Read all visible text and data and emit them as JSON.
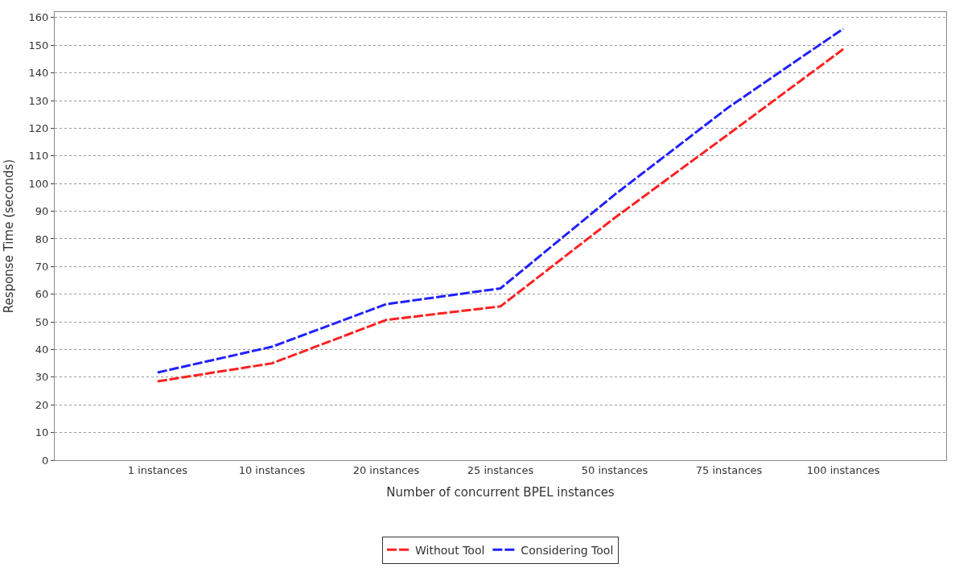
{
  "chart_data": {
    "type": "line",
    "xlabel": "Number of concurrent BPEL instances",
    "ylabel": "Response Time (seconds)",
    "categories": [
      "1 instances",
      "10 instances",
      "20 instances",
      "25 instances",
      "50 instances",
      "75 instances",
      "100 instances"
    ],
    "series": [
      {
        "name": "Without Tool",
        "color": "#ff2020",
        "values": [
          28.5,
          35,
          50.7,
          55.6,
          87.6,
          118,
          148.6
        ]
      },
      {
        "name": "Considering Tool",
        "color": "#2020ff",
        "values": [
          31.7,
          41,
          56.4,
          62.1,
          96,
          127.7,
          156
        ]
      }
    ],
    "ylim": [
      0,
      162
    ],
    "yticks": [
      0,
      10,
      20,
      30,
      40,
      50,
      60,
      70,
      80,
      90,
      100,
      110,
      120,
      130,
      140,
      150,
      160
    ],
    "grid": "y",
    "legend": "bottom",
    "marker": "none",
    "line_style": "dashed"
  }
}
